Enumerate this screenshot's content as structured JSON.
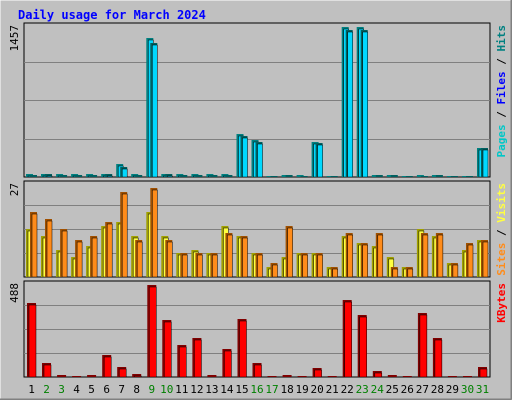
{
  "colors": {
    "background": "#c0c0c0",
    "title": "#0000ff",
    "hits_front": "#00d9ff",
    "hits_back": "#008080",
    "pages_front": "#00c7c7",
    "pages_back": "#006060",
    "visits_front": "#ffff40",
    "visits_back": "#a0a000",
    "sites_front": "#ff8c1a",
    "sites_back": "#a05000",
    "kbytes_front": "#ff0000",
    "kbytes_back": "#800000",
    "weekend_label": "#008000",
    "weekday_label": "#000000"
  },
  "chart_data": {
    "type": "bar",
    "title": "Daily usage for March 2024",
    "categories": [
      "1",
      "2",
      "3",
      "4",
      "5",
      "6",
      "7",
      "8",
      "9",
      "10",
      "11",
      "12",
      "13",
      "14",
      "15",
      "16",
      "17",
      "18",
      "19",
      "20",
      "21",
      "22",
      "23",
      "24",
      "25",
      "26",
      "27",
      "28",
      "29",
      "30",
      "31"
    ],
    "weekend_days": [
      "2",
      "3",
      "9",
      "10",
      "16",
      "17",
      "23",
      "24",
      "30",
      "31"
    ],
    "panels": [
      {
        "id": "hits",
        "scale_label": "1457",
        "ylim": [
          0,
          1457
        ],
        "legend": [
          {
            "text": "Pages",
            "color": "#00c7c7"
          },
          {
            "text": " / ",
            "color": "#000000"
          },
          {
            "text": "Files",
            "color": "#0000ff"
          },
          {
            "text": " / ",
            "color": "#000000"
          },
          {
            "text": "Hits",
            "color": "#008080"
          }
        ],
        "series": [
          {
            "name": "Hits",
            "values": [
              30,
              30,
              25,
              25,
              25,
              30,
              130,
              25,
              1350,
              30,
              25,
              25,
              25,
              25,
              420,
              360,
              10,
              20,
              15,
              340,
              10,
              1460,
              1460,
              20,
              20,
              10,
              15,
              20,
              10,
              10,
              280
            ]
          },
          {
            "name": "Files",
            "values": [
              20,
              25,
              20,
              20,
              20,
              25,
              100,
              20,
              1300,
              25,
              20,
              20,
              20,
              20,
              400,
              340,
              5,
              15,
              10,
              330,
              5,
              1430,
              1430,
              15,
              15,
              5,
              10,
              15,
              5,
              5,
              280
            ]
          }
        ]
      },
      {
        "id": "visits",
        "scale_label": "27",
        "ylim": [
          0,
          27
        ],
        "legend": [
          {
            "text": "Sites",
            "color": "#ff8c1a"
          },
          {
            "text": " / ",
            "color": "#000000"
          },
          {
            "text": "Visits",
            "color": "#ffff40"
          }
        ],
        "series": [
          {
            "name": "Visits",
            "values": [
              14,
              12,
              8,
              6,
              9,
              15,
              16,
              12,
              19,
              12,
              7,
              8,
              7,
              15,
              12,
              7,
              3,
              6,
              7,
              7,
              3,
              12,
              10,
              9,
              6,
              3,
              14,
              12,
              4,
              8,
              11
            ]
          },
          {
            "name": "Sites",
            "values": [
              19,
              17,
              14,
              11,
              12,
              16,
              25,
              11,
              26,
              11,
              7,
              7,
              7,
              13,
              12,
              7,
              4,
              15,
              7,
              7,
              3,
              13,
              10,
              13,
              3,
              3,
              13,
              13,
              4,
              10,
              11
            ]
          }
        ]
      },
      {
        "id": "kbytes",
        "scale_label": "488",
        "ylim": [
          0,
          488
        ],
        "legend": [
          {
            "text": "KBytes",
            "color": "#ff0000"
          }
        ],
        "series": [
          {
            "name": "KBytes",
            "values": [
              390,
              75,
              10,
              5,
              10,
              115,
              55,
              15,
              488,
              300,
              170,
              205,
              10,
              150,
              310,
              75,
              5,
              12,
              5,
              50,
              3,
              410,
              330,
              30,
              10,
              5,
              340,
              205,
              3,
              3,
              55
            ]
          }
        ]
      }
    ]
  }
}
